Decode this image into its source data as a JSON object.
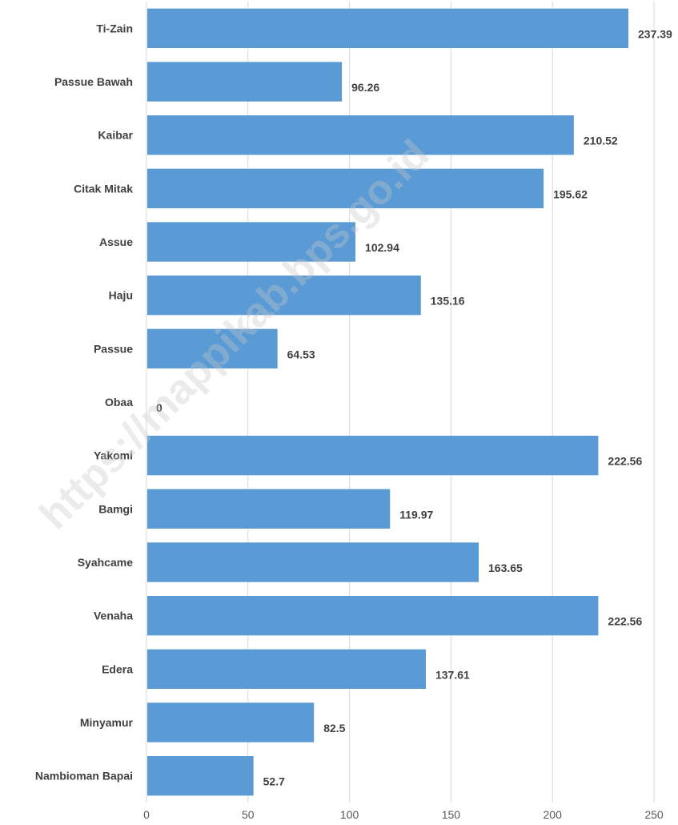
{
  "chart_data": {
    "type": "bar",
    "orientation": "horizontal",
    "categories": [
      "Ti-Zain",
      "Passue Bawah",
      "Kaibar",
      "Citak Mitak",
      "Assue",
      "Haju",
      "Passue",
      "Obaa",
      "Yakomi",
      "Bamgi",
      "Syahcame",
      "Venaha",
      "Edera",
      "Minyamur",
      "Nambioman Bapai"
    ],
    "values": [
      237.39,
      96.26,
      210.52,
      195.62,
      102.94,
      135.16,
      64.53,
      0,
      222.56,
      119.97,
      163.65,
      222.56,
      137.61,
      82.5,
      52.7
    ],
    "value_labels": [
      "237.39",
      "96.26",
      "210.52",
      "195.62",
      "102.94",
      "135.16",
      "64.53",
      "0",
      "222.56",
      "119.97",
      "163.65",
      "222.56",
      "137.61",
      "82.5",
      "52.7"
    ],
    "x_ticks": [
      "0",
      "50",
      "100",
      "150",
      "200",
      "250"
    ],
    "xlim": [
      0,
      250
    ],
    "title": "",
    "xlabel": "",
    "ylabel": "",
    "grid": true,
    "legend": "none",
    "bar_color": "#5b9bd5",
    "watermark": "https://mappikab.bps.go.id"
  }
}
